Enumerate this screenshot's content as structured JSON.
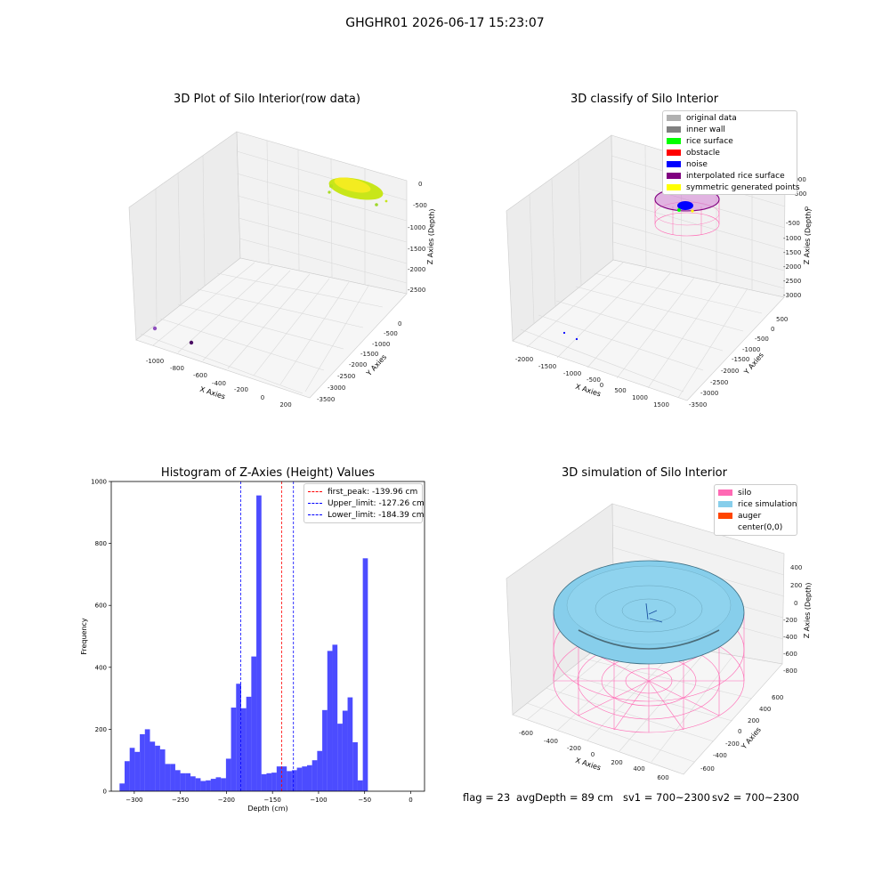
{
  "figure": {
    "suptitle": "GHGHR01 2026-06-17 15:23:07"
  },
  "panels": {
    "raw": {
      "title": "3D Plot of Silo Interior(row data)",
      "xlabel": "X Axies",
      "ylabel": "Y Axies",
      "zlabel": "Z Axies (Depth)",
      "xticks": [
        "-1000",
        "-800",
        "-600",
        "-400",
        "-200",
        "0",
        "200"
      ],
      "yticks": [
        "0",
        "-500",
        "-1000",
        "-1500",
        "-2000",
        "-2500",
        "-3000",
        "-3500"
      ],
      "zticks": [
        "0",
        "-500",
        "-1000",
        "-1500",
        "-2000",
        "-2500"
      ]
    },
    "classify": {
      "title": "3D classify of Silo Interior",
      "xlabel": "X Axies",
      "ylabel": "Y Axies",
      "zlabel": "Z Axies (Depth)",
      "xticks": [
        "-2000",
        "-1500",
        "-1000",
        "-500",
        "0",
        "500",
        "1000",
        "1500"
      ],
      "yticks": [
        "500",
        "0",
        "-500",
        "-1000",
        "-1500",
        "-2000",
        "-2500",
        "-3000",
        "-3500"
      ],
      "zticks": [
        "1000",
        "500",
        "0",
        "-500",
        "-1000",
        "-1500",
        "-2000",
        "-2500",
        "-3000"
      ],
      "legend": [
        {
          "label": "original data",
          "color": "#b0b0b0"
        },
        {
          "label": "inner wall",
          "color": "#808080"
        },
        {
          "label": "rice surface",
          "color": "#00ff00"
        },
        {
          "label": "obstacle",
          "color": "#ff0000"
        },
        {
          "label": "noise",
          "color": "#0000ff"
        },
        {
          "label": "interpolated rice surface",
          "color": "#800080"
        },
        {
          "label": "symmetric generated points",
          "color": "#ffff00"
        }
      ]
    },
    "simulation": {
      "title": "3D simulation of Silo Interior",
      "xlabel": "X Axies",
      "ylabel": "Y Axies",
      "zlabel": "Z Axies (Depth)",
      "xticks": [
        "-600",
        "-400",
        "-200",
        "0",
        "200",
        "400",
        "600"
      ],
      "yticks": [
        "600",
        "400",
        "200",
        "0",
        "-200",
        "-400",
        "-600"
      ],
      "zticks": [
        "400",
        "200",
        "0",
        "-200",
        "-400",
        "-600",
        "-800"
      ],
      "legend": [
        {
          "label": "silo",
          "color": "#ff69b4"
        },
        {
          "label": "rice simulation",
          "color": "#87ceeb"
        },
        {
          "label": "auger",
          "color": "#ff4500"
        },
        {
          "label": "center(0,0)",
          "color": "#ffffff"
        }
      ]
    }
  },
  "footer": {
    "flag": "flag = 23",
    "avg": "avgDepth = 89 cm",
    "sv1": "sv1 = 700~2300",
    "sv2": "sv2 = 700~2300"
  },
  "chart_data": [
    {
      "type": "bar",
      "title": "Histogram of Z-Axies (Height) Values",
      "xlabel": "Depth (cm)",
      "ylabel": "Frequency",
      "xlim": [
        -325,
        15
      ],
      "ylim": [
        0,
        1000
      ],
      "xticks": [
        -300,
        -250,
        -200,
        -150,
        -100,
        -50,
        0
      ],
      "yticks": [
        0,
        200,
        400,
        600,
        800,
        1000
      ],
      "bar_color": "#0000ff",
      "bar_alpha": 0.7,
      "bin_width": 5.5,
      "bin_edges_start": -316,
      "values": [
        25,
        97,
        140,
        127,
        184,
        200,
        160,
        147,
        135,
        88,
        88,
        68,
        58,
        58,
        48,
        42,
        33,
        35,
        40,
        45,
        42,
        105,
        270,
        347,
        268,
        305,
        435,
        955,
        55,
        58,
        60,
        80,
        80,
        65,
        68,
        76,
        80,
        84,
        100,
        130,
        262,
        453,
        473,
        218,
        260,
        303,
        158,
        35,
        752
      ],
      "vlines": [
        {
          "label": "first_peak: -139.96 cm",
          "x": -139.96,
          "color": "#ff0000"
        },
        {
          "label": "Upper_limit: -127.26 cm",
          "x": -127.26,
          "color": "#0000ff"
        },
        {
          "label": "Lower_limit: -184.39 cm",
          "x": -184.39,
          "color": "#0000ff"
        }
      ],
      "legend_position": "upper-right"
    }
  ]
}
